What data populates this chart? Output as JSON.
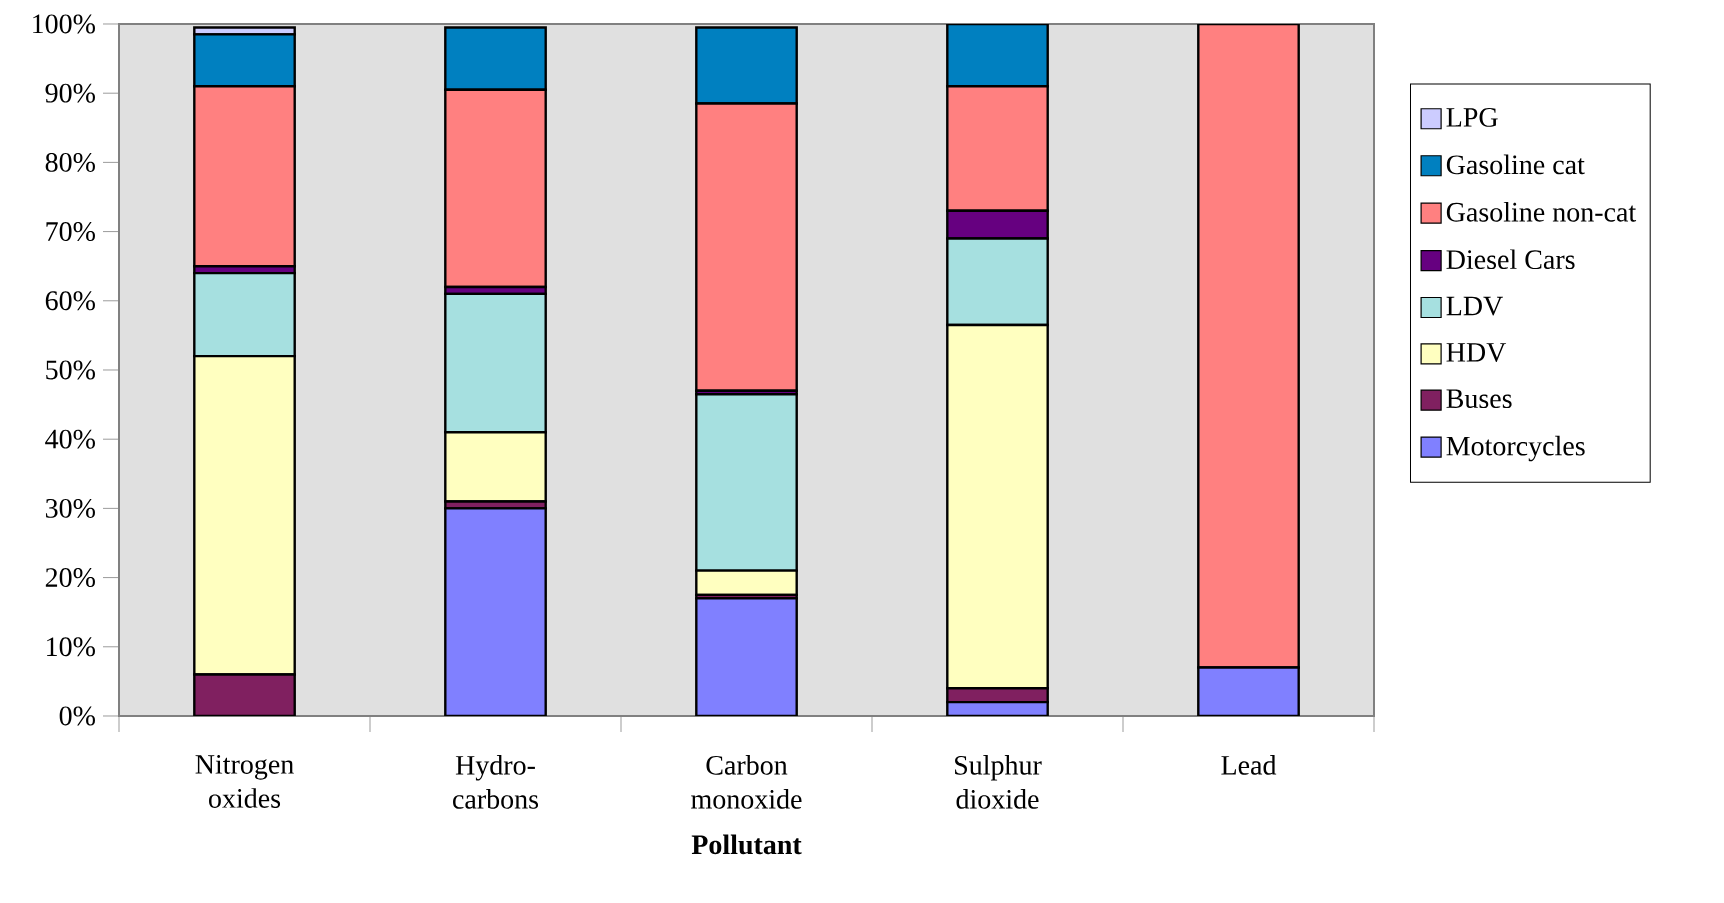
{
  "chart_data": {
    "type": "bar",
    "stacked": true,
    "xlabel": "Pollutant",
    "categories": [
      "Nitrogen oxides",
      "Hydro-carbons",
      "Carbon monoxide",
      "Sulphur dioxide",
      "Lead"
    ],
    "ylim": [
      0,
      100
    ],
    "yticks": [
      {
        "value": 0,
        "label": "0%"
      },
      {
        "value": 10,
        "label": "10%"
      },
      {
        "value": 20,
        "label": "20%"
      },
      {
        "value": 30,
        "label": "30%"
      },
      {
        "value": 40,
        "label": "40%"
      },
      {
        "value": 50,
        "label": "50%"
      },
      {
        "value": 60,
        "label": "60%"
      },
      {
        "value": 70,
        "label": "70%"
      },
      {
        "value": 80,
        "label": "80%"
      },
      {
        "value": 90,
        "label": "90%"
      },
      {
        "value": 100,
        "label": "100%"
      }
    ],
    "grid": false,
    "legend": "right",
    "series": [
      {
        "name": "Motorcycles",
        "color": "#8080ff",
        "values": [
          null,
          30,
          17,
          2,
          7
        ]
      },
      {
        "name": "Buses",
        "color": "#802060",
        "values": [
          6,
          1,
          0.5,
          2,
          0
        ]
      },
      {
        "name": "HDV",
        "color": "#ffffc0",
        "values": [
          46,
          10,
          3.5,
          52.5,
          0
        ]
      },
      {
        "name": "LDV",
        "color": "#a6e0e0",
        "values": [
          12,
          20,
          25.5,
          12.5,
          0
        ]
      },
      {
        "name": "Diesel Cars",
        "color": "#660080",
        "values": [
          1,
          1,
          0.5,
          4,
          0
        ]
      },
      {
        "name": "Gasoline non-cat",
        "color": "#ff8080",
        "values": [
          26,
          28.5,
          41.5,
          18,
          93
        ]
      },
      {
        "name": "Gasoline cat",
        "color": "#0080c0",
        "values": [
          7.5,
          9,
          11,
          9,
          0
        ]
      },
      {
        "name": "LPG",
        "color": "#ccccff",
        "values": [
          1,
          null,
          null,
          0,
          0
        ]
      }
    ]
  }
}
